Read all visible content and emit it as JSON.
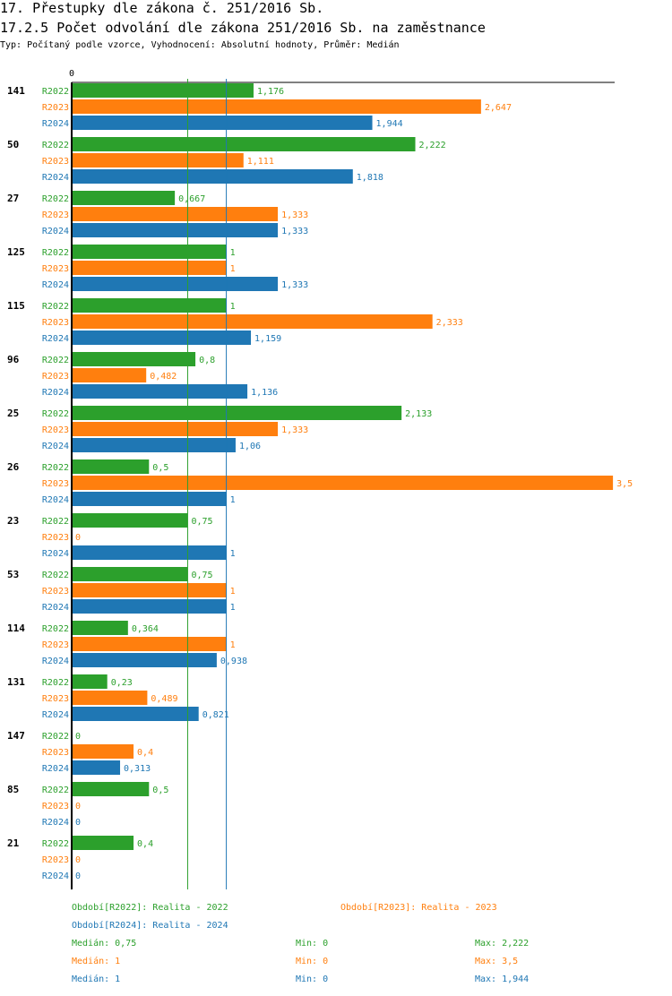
{
  "title": "17. Přestupky dle zákona č. 251/2016 Sb.",
  "subtitle": "17.2.5 Počet odvolání dle zákona 251/2016 Sb. na zaměstnance",
  "info": "Typ: Počítaný podle vzorce, Vyhodnocení: Absolutní hodnoty, Průměr: Medián",
  "colors": {
    "R2022": "#2ca02c",
    "R2023": "#ff7f0e",
    "R2024": "#1f77b4"
  },
  "chart_data": {
    "type": "bar",
    "orientation": "horizontal",
    "axis_zero_label": "0",
    "xlim": [
      0,
      3.5
    ],
    "categories": [
      "141",
      "50",
      "27",
      "125",
      "115",
      "96",
      "25",
      "26",
      "23",
      "53",
      "114",
      "131",
      "147",
      "85",
      "21"
    ],
    "series": [
      {
        "name": "R2022",
        "values": [
          1.176,
          2.222,
          0.667,
          1,
          1,
          0.8,
          2.133,
          0.5,
          0.75,
          0.75,
          0.364,
          0.23,
          0,
          0.5,
          0.4
        ],
        "labels": [
          "1,176",
          "2,222",
          "0,667",
          "1",
          "1",
          "0,8",
          "2,133",
          "0,5",
          "0,75",
          "0,75",
          "0,364",
          "0,23",
          "0",
          "0,5",
          "0,4"
        ]
      },
      {
        "name": "R2023",
        "values": [
          2.647,
          1.111,
          1.333,
          1,
          2.333,
          0.482,
          1.333,
          3.5,
          0,
          1,
          1,
          0.489,
          0.4,
          0,
          0
        ],
        "labels": [
          "2,647",
          "1,111",
          "1,333",
          "1",
          "2,333",
          "0,482",
          "1,333",
          "3,5",
          "0",
          "1",
          "1",
          "0,489",
          "0,4",
          "0",
          "0"
        ]
      },
      {
        "name": "R2024",
        "values": [
          1.944,
          1.818,
          1.333,
          1.333,
          1.159,
          1.136,
          1.06,
          1,
          1,
          1,
          0.938,
          0.821,
          0.313,
          0,
          0
        ],
        "labels": [
          "1,944",
          "1,818",
          "1,333",
          "1,333",
          "1,159",
          "1,136",
          "1,06",
          "1",
          "1",
          "1",
          "0,938",
          "0,821",
          "0,313",
          "0",
          "0"
        ]
      }
    ],
    "median_lines": [
      0.75,
      1
    ]
  },
  "legend": {
    "r2022": "Období[R2022]: Realita - 2022",
    "r2023": "Období[R2023]: Realita - 2023",
    "r2024": "Období[R2024]: Realita - 2024"
  },
  "stats": [
    {
      "median": "Medián: 0,75",
      "min": "Min: 0",
      "max": "Max: 2,222"
    },
    {
      "median": "Medián: 1",
      "min": "Min: 0",
      "max": "Max: 3,5"
    },
    {
      "median": "Medián: 1",
      "min": "Min: 0",
      "max": "Max: 1,944"
    }
  ]
}
